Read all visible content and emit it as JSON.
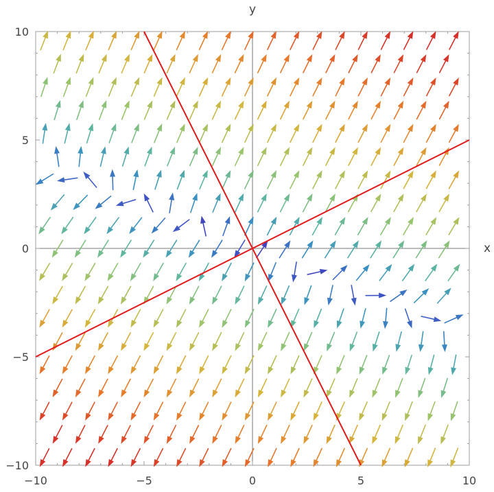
{
  "chart_data": {
    "type": "vector_field",
    "title": "",
    "xlabel": "x",
    "ylabel": "y",
    "xlim": [
      -10,
      10
    ],
    "ylim": [
      -10,
      10
    ],
    "xticks": [
      -10,
      -5,
      0,
      5,
      10
    ],
    "yticks": [
      -10,
      -5,
      0,
      5,
      10
    ],
    "xtick_labels": [
      "−10",
      "−5",
      "0",
      "5",
      "10"
    ],
    "ytick_labels": [
      "−10",
      "−5",
      "0",
      "5",
      "10"
    ],
    "grid": false,
    "legend": "none",
    "field": {
      "u": "x + 2y",
      "v": "2x + 4y + (y - 2x)/5",
      "grid_spacing_x": 1,
      "grid_spacing_y": 1.07
    },
    "colormap": [
      "#4b1c99",
      "#3f4fc4",
      "#3a8fc2",
      "#5bb5a2",
      "#9bc56c",
      "#d6b53c",
      "#e77a2b",
      "#d6302a"
    ],
    "lines": [
      {
        "color": "#e31a1c",
        "points": [
          [
            -10,
            -5
          ],
          [
            10,
            5
          ]
        ]
      },
      {
        "color": "#e31a1c",
        "points": [
          [
            -5,
            10
          ],
          [
            5,
            -10
          ]
        ]
      }
    ]
  }
}
